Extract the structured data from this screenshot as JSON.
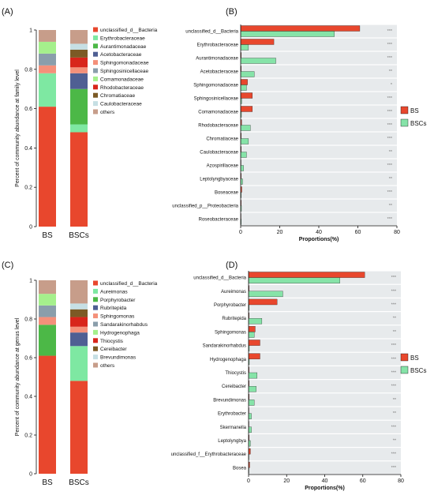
{
  "colors": {
    "BS": "#e8472d",
    "BSCs": "#86e3a8",
    "panel_bg": "#e7eaec"
  },
  "chart_data": [
    {
      "panel": "(A)",
      "type": "bar",
      "stacked": true,
      "ylabel": "Percent of community abundance at family level",
      "yticks": [
        "0",
        "0.2",
        "0.4",
        "0.6",
        "0.8",
        "1"
      ],
      "ylim": [
        0,
        1
      ],
      "categories": [
        "BS",
        "BSCs"
      ],
      "series": [
        {
          "name": "unclassified_d__Bacteria",
          "color": "#e8472d",
          "values": [
            0.61,
            0.48
          ]
        },
        {
          "name": "Erythrobacteraceae",
          "color": "#7ee8a2",
          "values": [
            0.17,
            0.04
          ]
        },
        {
          "name": "Aurantimonadaceae",
          "color": "#4cb847",
          "values": [
            0.0,
            0.18
          ]
        },
        {
          "name": "Acetobacteraceae",
          "color": "#4f5f93",
          "values": [
            0.0,
            0.08
          ]
        },
        {
          "name": "Sphingomonadaceae",
          "color": "#f4907a",
          "values": [
            0.04,
            0.03
          ]
        },
        {
          "name": "Sphingosinicellaceae",
          "color": "#8a9eab",
          "values": [
            0.06,
            0.0
          ]
        },
        {
          "name": "Comamonadaceae",
          "color": "#a5f08c",
          "values": [
            0.06,
            0.0
          ]
        },
        {
          "name": "Rhodobacteraceae",
          "color": "#d8251b",
          "values": [
            0.0,
            0.05
          ]
        },
        {
          "name": "Chromatiaceae",
          "color": "#7c5a25",
          "values": [
            0.0,
            0.04
          ]
        },
        {
          "name": "Caulobacteraceae",
          "color": "#c6dfe4",
          "values": [
            0.0,
            0.03
          ]
        },
        {
          "name": "others",
          "color": "#c79d8a",
          "values": [
            0.06,
            0.07
          ]
        }
      ],
      "legend_placement": "right"
    },
    {
      "panel": "(B)",
      "type": "bar",
      "orientation": "horizontal",
      "xlabel": "Proportions(%)",
      "xticks": [
        "0",
        "20",
        "40",
        "60",
        "80"
      ],
      "xlim": [
        0,
        80
      ],
      "grid": false,
      "legend_placement": "right",
      "categories": [
        "unclassified_d__Bacteria",
        "Erythrobacteraceae",
        "Aurantimonadaceae",
        "Acetobacteraceae",
        "Sphingomonadaceae",
        "Sphingosinicellaceae",
        "Comamonadaceae",
        "Rhodobacteraceae",
        "Chromatiaceae",
        "Caulobacteraceae",
        "Azospirillaceae",
        "Leptolyngbyaceae",
        "Boseaceae",
        "unclassified_p__Proteobacteria",
        "Roseobacteraceae"
      ],
      "series": [
        {
          "name": "BS",
          "values": [
            61,
            17,
            0.3,
            0.3,
            3.5,
            6,
            6,
            0.5,
            0.3,
            0.3,
            0.2,
            0.3,
            0.6,
            0.3,
            0.1
          ]
        },
        {
          "name": "BSCs",
          "values": [
            48,
            4,
            18,
            7,
            3,
            0.5,
            0.4,
            5,
            4,
            3,
            1.5,
            1,
            0.3,
            0.4,
            0.3
          ]
        }
      ],
      "significance": [
        "***",
        "***",
        "***",
        "**",
        "*",
        "***",
        "***",
        "***",
        "***",
        "**",
        "***",
        "**",
        "***",
        "**",
        "***"
      ]
    },
    {
      "panel": "(C)",
      "type": "bar",
      "stacked": true,
      "ylabel": "Percent of community abundance at genus level",
      "yticks": [
        "0",
        "0.2",
        "0.4",
        "0.6",
        "0.8",
        "1"
      ],
      "ylim": [
        0,
        1
      ],
      "categories": [
        "BS",
        "BSCs"
      ],
      "series": [
        {
          "name": "unclassified_d__Bacteria",
          "color": "#e8472d",
          "values": [
            0.61,
            0.48
          ]
        },
        {
          "name": "Aureimonas",
          "color": "#7ee8a2",
          "values": [
            0.0,
            0.18
          ]
        },
        {
          "name": "Porphyrobacter",
          "color": "#4cb847",
          "values": [
            0.16,
            0.0
          ]
        },
        {
          "name": "Rubritepida",
          "color": "#4f5f93",
          "values": [
            0.0,
            0.07
          ]
        },
        {
          "name": "Sphingomonas",
          "color": "#f4907a",
          "values": [
            0.04,
            0.03
          ]
        },
        {
          "name": "Sandarakinorhabdus",
          "color": "#8a9eab",
          "values": [
            0.06,
            0.0
          ]
        },
        {
          "name": "Hydrogenophaga",
          "color": "#a5f08c",
          "values": [
            0.06,
            0.0
          ]
        },
        {
          "name": "Thiocystis",
          "color": "#d8251b",
          "values": [
            0.0,
            0.05
          ]
        },
        {
          "name": "Cereibacter",
          "color": "#7c5a25",
          "values": [
            0.0,
            0.04
          ]
        },
        {
          "name": "Brevundimonas",
          "color": "#c6dfe4",
          "values": [
            0.0,
            0.03
          ]
        },
        {
          "name": "others",
          "color": "#c79d8a",
          "values": [
            0.07,
            0.12
          ]
        }
      ],
      "legend_placement": "right"
    },
    {
      "panel": "(D)",
      "type": "bar",
      "orientation": "horizontal",
      "xlabel": "Proportions(%)",
      "xticks": [
        "0",
        "20",
        "40",
        "60",
        "80"
      ],
      "xlim": [
        0,
        80
      ],
      "grid": false,
      "legend_placement": "right",
      "categories": [
        "unclassified_d__Bacteria",
        "Aureimonas",
        "Porphyrobacter",
        "Rubritepida",
        "Sphingomonas",
        "Sandarakinorhabdus",
        "Hydrogenophaga",
        "Thiocystis",
        "Cereibacter",
        "Brevundimonas",
        "Erythrobacter",
        "Skermanella",
        "Leptolyngbya",
        "unclassified_f__Erythrobacteraceae",
        "Bosea"
      ],
      "series": [
        {
          "name": "BS",
          "values": [
            61,
            0.3,
            15,
            0.3,
            3.5,
            6,
            6,
            0.3,
            0.3,
            0.3,
            0.2,
            0.1,
            0.3,
            1,
            0.6
          ]
        },
        {
          "name": "BSCs",
          "values": [
            48,
            18,
            0.3,
            7,
            3,
            0.4,
            0.4,
            4.5,
            4,
            3,
            1.5,
            1.5,
            1,
            0.2,
            0.2
          ]
        }
      ],
      "significance": [
        "***",
        "***",
        "***",
        "**",
        "**",
        "***",
        "***",
        "***",
        "***",
        "**",
        "**",
        "***",
        "**",
        "***",
        "***"
      ]
    }
  ]
}
